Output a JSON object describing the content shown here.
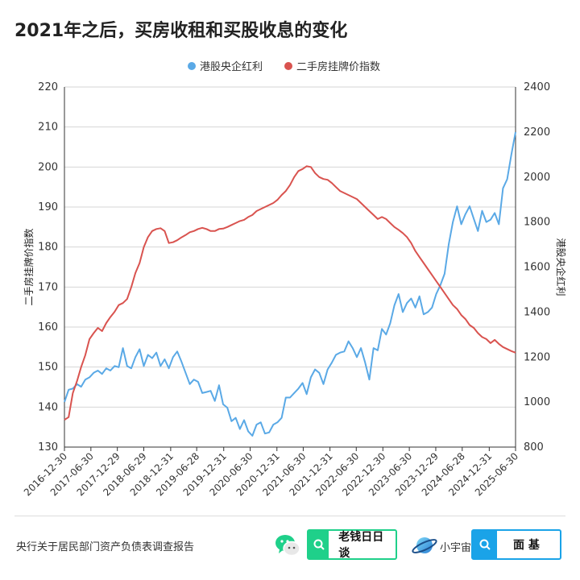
{
  "title": "2021年之后，买房收租和买股收息的变化",
  "source_note": "央行关于居民部门资产负债表调查报告",
  "brands": {
    "wechat_label": "老钱日日谈",
    "mini_label": "小宇宙",
    "mianji_label": "面 基"
  },
  "colors": {
    "blue_series": "#5aa9e6",
    "red_series": "#d9534f",
    "wechat_green": "#1fd08a",
    "mianji_blue": "#1aa3e8"
  },
  "chart_data": {
    "type": "line",
    "title": "",
    "legend_position": "top-center",
    "grid": true,
    "x_ticks": [
      "2016-12-30",
      "2017-06-30",
      "2017-12-29",
      "2018-06-29",
      "2018-12-31",
      "2019-06-28",
      "2019-12-31",
      "2020-06-30",
      "2020-12-31",
      "2021-06-30",
      "2021-12-31",
      "2022-06-30",
      "2022-12-30",
      "2023-06-30",
      "2023-12-29",
      "2024-06-28",
      "2024-12-31",
      "2025-06-30"
    ],
    "left_axis": {
      "label": "二手房挂牌价指数",
      "range": [
        130,
        220
      ],
      "ticks": [
        130,
        140,
        150,
        160,
        170,
        180,
        190,
        200,
        210,
        220
      ]
    },
    "right_axis": {
      "label": "港股央企红利",
      "range": [
        800,
        2400
      ],
      "ticks": [
        800,
        1000,
        1200,
        1400,
        1600,
        1800,
        2000,
        2200,
        2400
      ]
    },
    "series": [
      {
        "name": "港股央企红利",
        "axis": "right",
        "x_start": "2016-12-30",
        "x_end": "2025-06-30",
        "values": [
          1000,
          1055,
          1060,
          1080,
          1068,
          1100,
          1110,
          1130,
          1140,
          1125,
          1150,
          1140,
          1160,
          1155,
          1240,
          1160,
          1150,
          1200,
          1235,
          1160,
          1210,
          1195,
          1220,
          1160,
          1190,
          1150,
          1200,
          1225,
          1180,
          1130,
          1080,
          1100,
          1090,
          1040,
          1045,
          1050,
          1005,
          1075,
          990,
          975,
          915,
          930,
          880,
          920,
          870,
          850,
          900,
          910,
          860,
          865,
          900,
          910,
          930,
          1020,
          1020,
          1040,
          1060,
          1085,
          1035,
          1110,
          1145,
          1130,
          1080,
          1145,
          1175,
          1210,
          1220,
          1225,
          1270,
          1240,
          1200,
          1240,
          1175,
          1100,
          1240,
          1230,
          1325,
          1300,
          1350,
          1430,
          1480,
          1400,
          1440,
          1460,
          1420,
          1470,
          1390,
          1400,
          1420,
          1480,
          1520,
          1570,
          1700,
          1800,
          1870,
          1790,
          1835,
          1870,
          1815,
          1760,
          1850,
          1800,
          1810,
          1840,
          1790,
          1950,
          1990,
          2100,
          2200
        ]
      },
      {
        "name": "二手房挂牌价指数",
        "axis": "left",
        "x_start": "2016-12-30",
        "x_end": "2025-06-30",
        "values": [
          136.8,
          137.5,
          143.5,
          146.5,
          150.0,
          153.0,
          157.0,
          158.5,
          159.8,
          159.0,
          161.0,
          162.5,
          163.8,
          165.5,
          166.0,
          167.0,
          170.0,
          173.5,
          176.0,
          180.0,
          182.5,
          184.0,
          184.5,
          184.7,
          184.0,
          181.0,
          181.2,
          181.7,
          182.4,
          183.0,
          183.7,
          184.0,
          184.5,
          184.8,
          184.5,
          184.0,
          184.0,
          184.5,
          184.6,
          185.0,
          185.5,
          186.0,
          186.5,
          186.8,
          187.5,
          188.0,
          189.0,
          189.5,
          190.0,
          190.5,
          191.0,
          191.8,
          193.0,
          194.0,
          195.5,
          197.5,
          199.0,
          199.5,
          200.2,
          200.0,
          198.5,
          197.5,
          197.0,
          196.8,
          196.0,
          195.0,
          194.0,
          193.5,
          193.0,
          192.5,
          192.0,
          191.0,
          190.0,
          189.0,
          188.0,
          187.0,
          187.5,
          187.0,
          186.0,
          185.0,
          184.3,
          183.5,
          182.5,
          181.0,
          179.0,
          177.5,
          176.0,
          174.5,
          173.0,
          171.5,
          170.0,
          168.5,
          167.0,
          165.5,
          164.5,
          163.0,
          162.0,
          160.5,
          159.8,
          158.5,
          157.5,
          157.0,
          156.0,
          156.8,
          155.8,
          155.0,
          154.5,
          154.0,
          153.6
        ]
      }
    ]
  }
}
